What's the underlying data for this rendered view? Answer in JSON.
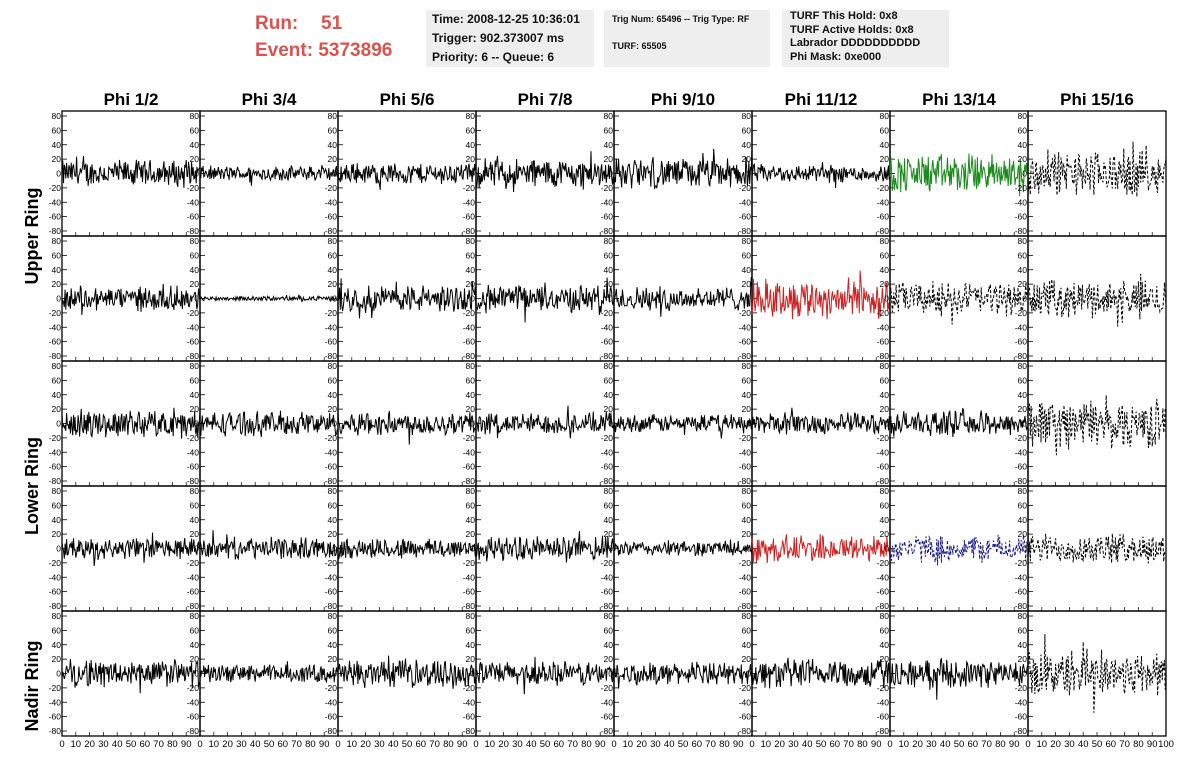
{
  "header": {
    "run_label": "Run:",
    "run_value": "51",
    "event_label": "Event:",
    "event_value": "5373896"
  },
  "info_panel_1": {
    "time": "Time: 2008-12-25 10:36:01",
    "trigger": "Trigger: 902.373007 ms",
    "priority": "Priority: 6 -- Queue: 6"
  },
  "info_panel_2": {
    "trig": "Trig Num: 65496 -- Trig Type: RF",
    "turf": "TURF: 65505"
  },
  "info_panel_3": {
    "hold": "TURF This Hold: 0x8",
    "active": "TURF Active Holds: 0x8",
    "labrador": "Labrador DDDDDDDDDD",
    "phimask": "Phi Mask: 0xe000"
  },
  "chart_data": {
    "type": "line",
    "columns": [
      "Phi 1/2",
      "Phi 3/4",
      "Phi 5/6",
      "Phi 7/8",
      "Phi 9/10",
      "Phi 11/12",
      "Phi 13/14",
      "Phi 15/16"
    ],
    "ring_labels": [
      "Upper Ring",
      "Lower Ring",
      "Nadir Ring"
    ],
    "row_ring_index": [
      0,
      0,
      1,
      1,
      2
    ],
    "yticks": [
      -80,
      -60,
      -40,
      -20,
      0,
      20,
      40,
      60,
      80
    ],
    "ylim": [
      -80,
      80
    ],
    "xticks": [
      0,
      10,
      20,
      30,
      40,
      50,
      60,
      70,
      80,
      90,
      100
    ],
    "xlim": [
      0,
      100
    ],
    "nadir_phi_columns": [
      0,
      1,
      2,
      3,
      4,
      5,
      6,
      7
    ],
    "trace_amplitudes": [
      [
        18,
        10,
        14,
        20,
        20,
        12,
        26,
        30
      ],
      [
        16,
        3,
        18,
        18,
        16,
        26,
        22,
        24
      ],
      [
        18,
        16,
        16,
        14,
        12,
        14,
        16,
        32
      ],
      [
        14,
        14,
        14,
        16,
        10,
        18,
        18,
        20
      ],
      [
        18,
        12,
        18,
        16,
        14,
        20,
        18,
        30
      ]
    ],
    "trace_styles": [
      [
        "solid",
        "solid",
        "solid",
        "solid",
        "solid",
        "solid",
        "solid",
        "dashed"
      ],
      [
        "solid",
        "solid",
        "solid",
        "solid",
        "solid",
        "solid",
        "dashed",
        "dashed"
      ],
      [
        "solid",
        "solid",
        "solid",
        "solid",
        "solid",
        "solid",
        "solid",
        "dashed"
      ],
      [
        "solid",
        "solid",
        "solid",
        "solid",
        "solid",
        "solid",
        "dashed",
        "dashed"
      ],
      [
        "solid",
        "solid",
        "solid",
        "solid",
        "solid",
        "solid",
        "solid",
        "dashed"
      ]
    ],
    "trace_colors": [
      [
        "#000000",
        "#000000",
        "#000000",
        "#000000",
        "#000000",
        "#000000",
        "#1a8a1a",
        "#000000"
      ],
      [
        "#000000",
        "#000000",
        "#000000",
        "#000000",
        "#000000",
        "#cc2222",
        "#000000",
        "#000000"
      ],
      [
        "#000000",
        "#000000",
        "#000000",
        "#000000",
        "#000000",
        "#000000",
        "#000000",
        "#000000"
      ],
      [
        "#000000",
        "#000000",
        "#000000",
        "#000000",
        "#000000",
        "#cc2222",
        "#1a1a8a",
        "#000000"
      ],
      [
        "#000000",
        "#000000",
        "#000000",
        "#000000",
        "#000000",
        "#000000",
        "#000000",
        "#000000"
      ]
    ]
  }
}
